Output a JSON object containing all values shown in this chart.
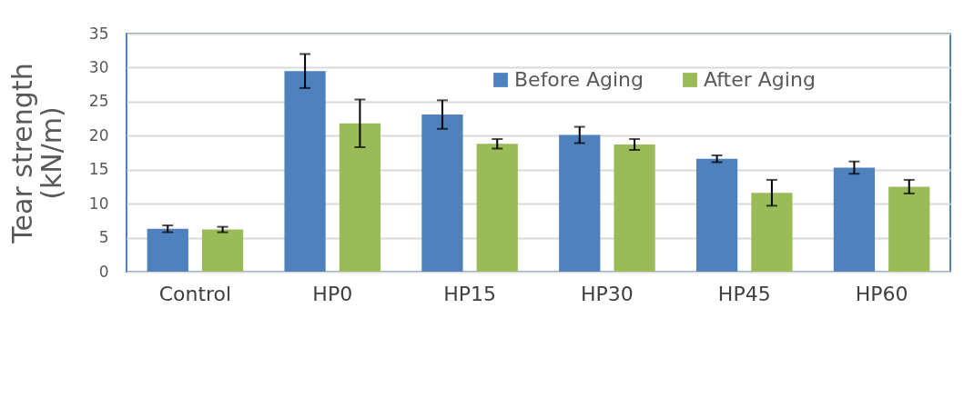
{
  "chart_data": {
    "type": "bar",
    "ylabel": "Tear strength (kN/m)",
    "categories": [
      "Control",
      "HP0",
      "HP15",
      "HP30",
      "HP45",
      "HP60"
    ],
    "series": [
      {
        "name": "Before Aging",
        "color": "#4f81bd",
        "values": [
          6.3,
          29.5,
          23.1,
          20.1,
          16.6,
          15.3
        ],
        "errors": [
          0.5,
          2.5,
          2.1,
          1.2,
          0.5,
          0.9
        ]
      },
      {
        "name": "After Aging",
        "color": "#9bbb59",
        "values": [
          6.2,
          21.8,
          18.8,
          18.7,
          11.6,
          12.5
        ],
        "errors": [
          0.4,
          3.5,
          0.7,
          0.8,
          1.9,
          1.0
        ]
      }
    ],
    "ylim": [
      0,
      35
    ],
    "yticks": [
      0,
      5,
      10,
      15,
      20,
      25,
      30,
      35
    ],
    "grid": "y",
    "legend": "top right"
  }
}
